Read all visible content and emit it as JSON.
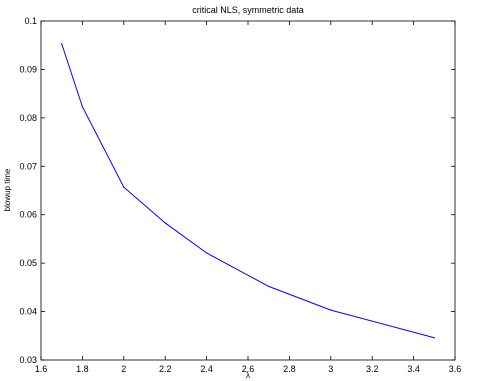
{
  "chart_data": {
    "type": "line",
    "title": "critical NLS, symmetric data",
    "xlabel": "λ",
    "ylabel": "blowup time",
    "xlim": [
      1.6,
      3.6
    ],
    "ylim": [
      0.03,
      0.1
    ],
    "xticks": [
      "1.6",
      "1.8",
      "2",
      "2.2",
      "2.4",
      "2.6",
      "2.8",
      "3",
      "3.2",
      "3.4",
      "3.6"
    ],
    "yticks": [
      "0.03",
      "0.04",
      "0.05",
      "0.06",
      "0.07",
      "0.08",
      "0.09",
      "0.1"
    ],
    "grid": false,
    "line_color": "#0000ff",
    "series": [
      {
        "x": [
          1.7,
          1.8,
          2.0,
          2.2,
          2.4,
          2.7,
          3.0,
          3.5
        ],
        "y": [
          0.0953,
          0.0823,
          0.0657,
          0.0583,
          0.0521,
          0.0452,
          0.0403,
          0.0346
        ]
      }
    ]
  }
}
